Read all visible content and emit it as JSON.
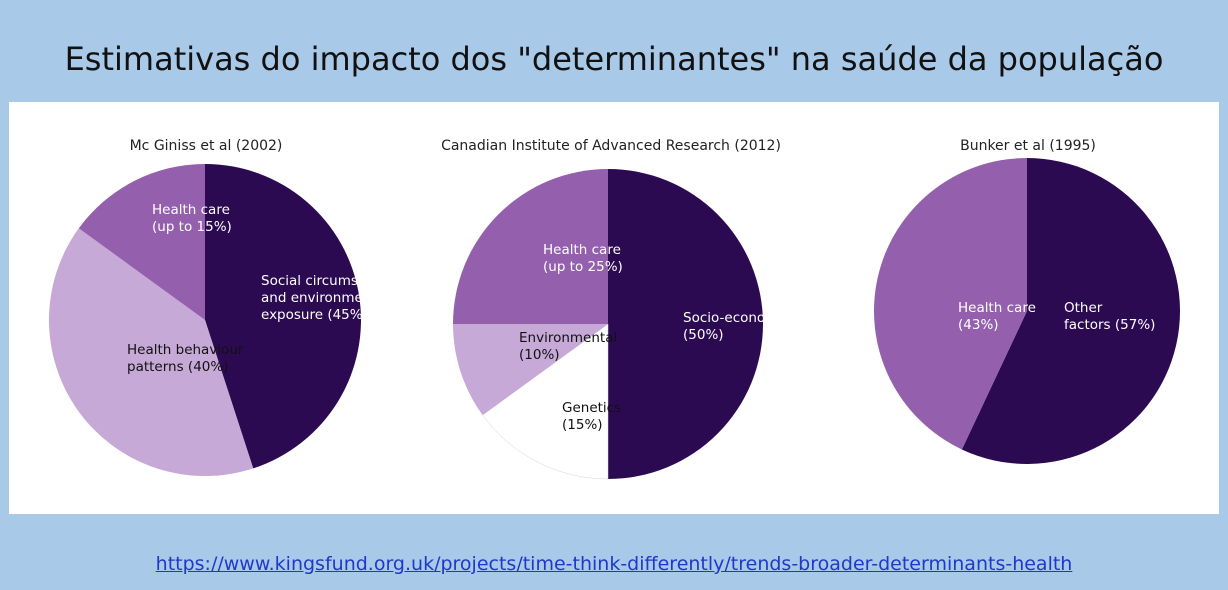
{
  "title": "Estimativas do impacto dos \"determinantes\" na saúde da população",
  "source_url": "https://www.kingsfund.org.uk/projects/time-think-differently/trends-broader-determinants-health",
  "colors": {
    "dark_purple": "#2b0a52",
    "mid_purple": "#9460ad",
    "light_purple": "#c6a9d7",
    "white": "#ffffff"
  },
  "chart_data": [
    {
      "type": "pie",
      "title": "Mc Giniss et al (2002)",
      "slices": [
        {
          "label": [
            "Social circumstances",
            "and environmental",
            "exposure (45%)"
          ],
          "value": 45,
          "color": "#2b0a52",
          "text_color": "#ffffff"
        },
        {
          "label": [
            "Health behaviour",
            "patterns (40%)"
          ],
          "value": 40,
          "color": "#c6a9d7",
          "text_color": "#111111"
        },
        {
          "label": [
            "Health care",
            "(up to 15%)"
          ],
          "value": 15,
          "color": "#9460ad",
          "text_color": "#ffffff"
        }
      ]
    },
    {
      "type": "pie",
      "title": "Canadian Institute of Advanced Research (2012)",
      "slices": [
        {
          "label": [
            "Socio-economic",
            "(50%)"
          ],
          "value": 50,
          "color": "#2b0a52",
          "text_color": "#ffffff"
        },
        {
          "label": [
            "Genetics",
            "(15%)"
          ],
          "value": 15,
          "color": "#ffffff",
          "text_color": "#111111"
        },
        {
          "label": [
            "Environmental",
            "(10%)"
          ],
          "value": 10,
          "color": "#c6a9d7",
          "text_color": "#111111"
        },
        {
          "label": [
            "Health care",
            "(up to 25%)"
          ],
          "value": 25,
          "color": "#9460ad",
          "text_color": "#ffffff"
        }
      ]
    },
    {
      "type": "pie",
      "title": "Bunker et al (1995)",
      "slices": [
        {
          "label": [
            "Other",
            "factors (57%)"
          ],
          "value": 57,
          "color": "#2b0a52",
          "text_color": "#ffffff"
        },
        {
          "label": [
            "Health care",
            "(43%)"
          ],
          "value": 43,
          "color": "#9460ad",
          "text_color": "#ffffff"
        }
      ]
    }
  ]
}
